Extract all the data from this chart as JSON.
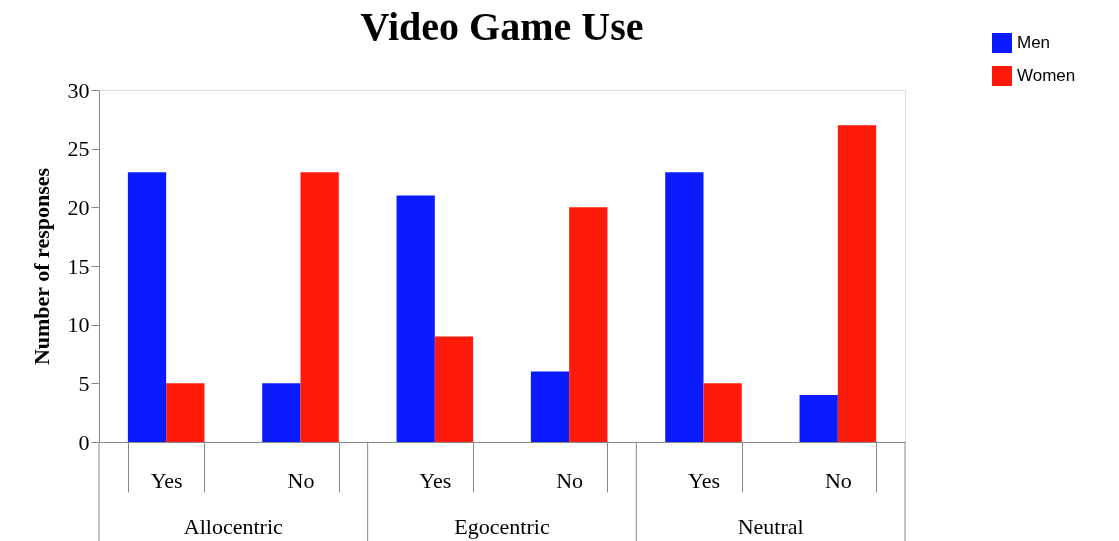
{
  "chart_data": {
    "type": "bar",
    "title": "Video Game Use",
    "ylabel": "Number of responses",
    "categories": [
      "Yes",
      "No",
      "Yes",
      "No",
      "Yes",
      "No"
    ],
    "series": [
      {
        "name": "Men",
        "color": "#0a1cff",
        "values": [
          23,
          5,
          21,
          6,
          23,
          4
        ]
      },
      {
        "name": "Women",
        "color": "#ff1a0a",
        "values": [
          5,
          23,
          9,
          20,
          5,
          27
        ]
      }
    ],
    "annotations": [
      "Allocentric",
      "Egocentric",
      "Neutral"
    ],
    "ylim": [
      0,
      30
    ],
    "yticks": [
      0,
      5,
      10,
      15,
      20,
      25,
      30
    ],
    "grid": false,
    "legend": "top right"
  }
}
